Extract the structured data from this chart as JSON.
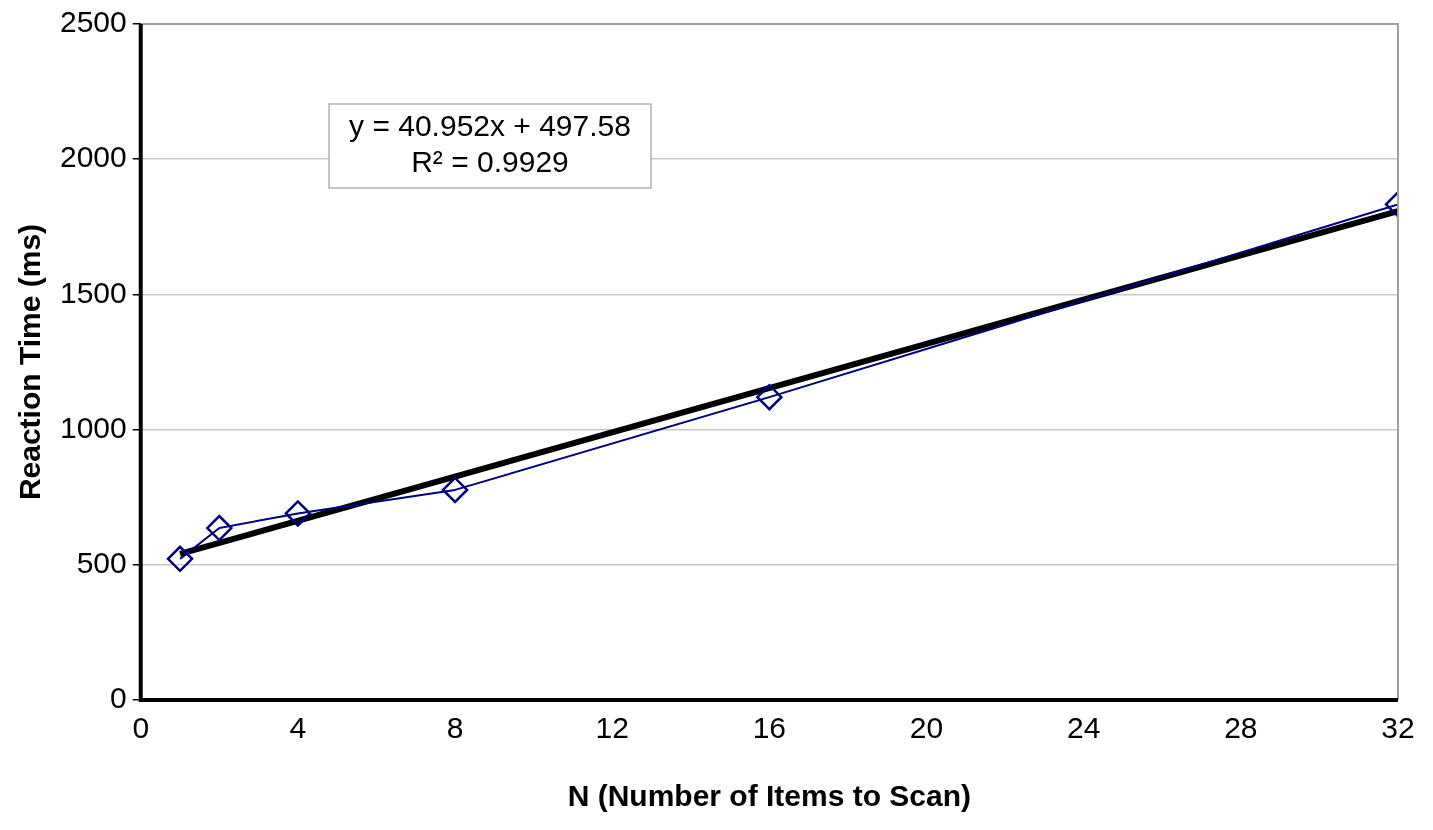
{
  "chart_data": {
    "type": "line",
    "xlabel": "N (Number of Items to Scan)",
    "ylabel": "Reaction Time (ms)",
    "xlim": [
      0,
      32
    ],
    "xticks": [
      0,
      4,
      8,
      12,
      16,
      20,
      24,
      28,
      32
    ],
    "ylim": [
      0,
      2500
    ],
    "yticks": [
      0,
      500,
      1000,
      1500,
      2000,
      2500
    ],
    "grid": "y",
    "legend": false,
    "series": [
      {
        "color": "#000080",
        "marker": "diamond",
        "x": [
          1,
          2,
          4,
          8,
          16,
          32
        ],
        "values": [
          522,
          636,
          690,
          777,
          1120,
          1833
        ]
      },
      {
        "type": "line",
        "color": "#000000",
        "marker": "none",
        "x": [
          1,
          32
        ],
        "values": [
          540,
          1808
        ]
      }
    ],
    "annotations": [
      "y = 40.952x + 497.58",
      "R² = 0.9929"
    ]
  }
}
